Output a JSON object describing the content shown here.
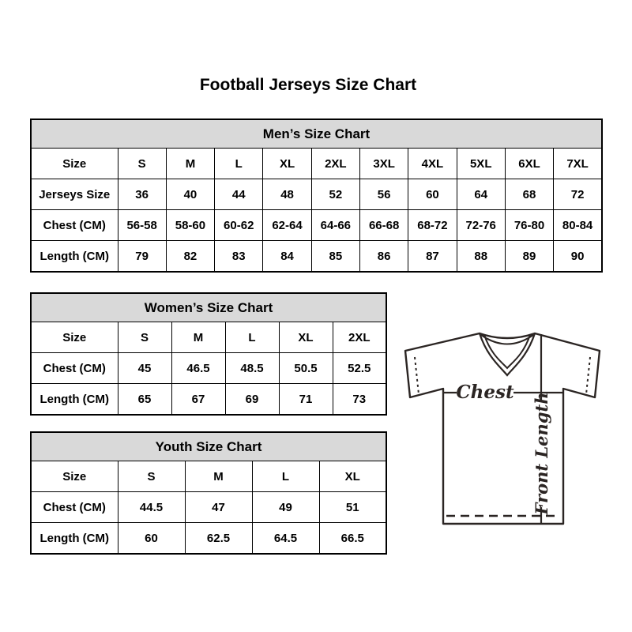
{
  "page": {
    "title": "Football Jerseys Size Chart"
  },
  "tables": {
    "men": {
      "title": "Men’s Size Chart",
      "rows": [
        {
          "label": "Size",
          "values": [
            "S",
            "M",
            "L",
            "XL",
            "2XL",
            "3XL",
            "4XL",
            "5XL",
            "6XL",
            "7XL"
          ]
        },
        {
          "label": "Jerseys Size",
          "values": [
            "36",
            "40",
            "44",
            "48",
            "52",
            "56",
            "60",
            "64",
            "68",
            "72"
          ]
        },
        {
          "label": "Chest (CM)",
          "values": [
            "56-58",
            "58-60",
            "60-62",
            "62-64",
            "64-66",
            "66-68",
            "68-72",
            "72-76",
            "76-80",
            "80-84"
          ]
        },
        {
          "label": "Length (CM)",
          "values": [
            "79",
            "82",
            "83",
            "84",
            "85",
            "86",
            "87",
            "88",
            "89",
            "90"
          ]
        }
      ]
    },
    "women": {
      "title": "Women’s Size Chart",
      "rows": [
        {
          "label": "Size",
          "values": [
            "S",
            "M",
            "L",
            "XL",
            "2XL"
          ]
        },
        {
          "label": "Chest (CM)",
          "values": [
            "45",
            "46.5",
            "48.5",
            "50.5",
            "52.5"
          ]
        },
        {
          "label": "Length (CM)",
          "values": [
            "65",
            "67",
            "69",
            "71",
            "73"
          ]
        }
      ]
    },
    "youth": {
      "title": "Youth Size Chart",
      "rows": [
        {
          "label": "Size",
          "values": [
            "S",
            "M",
            "L",
            "XL"
          ]
        },
        {
          "label": "Chest (CM)",
          "values": [
            "44.5",
            "47",
            "49",
            "51"
          ]
        },
        {
          "label": "Length (CM)",
          "values": [
            "60",
            "62.5",
            "64.5",
            "66.5"
          ]
        }
      ]
    }
  },
  "diagram": {
    "chest_label": "Chest",
    "front_length_label": "Front Length"
  },
  "colors": {
    "background": "#ffffff",
    "header_bg": "#d9d9d9",
    "table_border": "#000000",
    "text": "#000000",
    "jersey_stroke": "#2b2523"
  }
}
